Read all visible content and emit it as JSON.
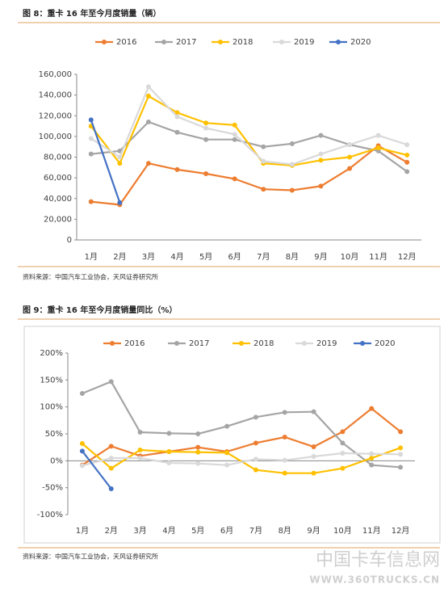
{
  "chart_data": [
    {
      "type": "line",
      "title": "图 8：重卡 16 年至今月度销量（辆）",
      "source": "资料来源：中国汽车工业协会，天风证券研究所",
      "categories": [
        "1月",
        "2月",
        "3月",
        "4月",
        "5月",
        "6月",
        "7月",
        "8月",
        "9月",
        "10月",
        "11月",
        "12月"
      ],
      "ylim": [
        0,
        160000
      ],
      "yticks": [
        0,
        {
          "value": 20000,
          "label": "20,000"
        },
        {
          "value": 40000,
          "label": "40,000"
        },
        {
          "value": 60000,
          "label": "60,000"
        },
        {
          "value": 80000,
          "label": "80,000"
        },
        {
          "value": 100000,
          "label": "100,000"
        },
        {
          "value": 120000,
          "label": "120,000"
        },
        {
          "value": 140000,
          "label": "140,000"
        },
        {
          "value": 160000,
          "label": "160,000"
        }
      ],
      "grid": false,
      "series": [
        {
          "name": "2016",
          "color": "#ed7d31",
          "values": [
            37000,
            34000,
            74000,
            68000,
            64000,
            59000,
            49000,
            48000,
            52000,
            69000,
            91000,
            75000
          ]
        },
        {
          "name": "2017",
          "color": "#a5a5a5",
          "values": [
            83000,
            86000,
            114000,
            104000,
            97000,
            97000,
            90000,
            93000,
            101000,
            92000,
            86000,
            66000
          ]
        },
        {
          "name": "2018",
          "color": "#ffc000",
          "values": [
            110000,
            74000,
            139000,
            123000,
            113000,
            111000,
            74000,
            72000,
            77000,
            80000,
            89000,
            82000
          ]
        },
        {
          "name": "2019",
          "color": "#d9d9d9",
          "values": [
            98000,
            80000,
            148000,
            119000,
            108000,
            102000,
            76000,
            73000,
            83000,
            92000,
            101000,
            92000
          ]
        },
        {
          "name": "2020",
          "color": "#4472c4",
          "values": [
            116000,
            36000,
            null,
            null,
            null,
            null,
            null,
            null,
            null,
            null,
            null,
            null
          ]
        }
      ]
    },
    {
      "type": "line",
      "title": "图 9：重卡 16 年至今月度销量同比（%）",
      "source": "资料来源：中国汽车工业协会，天风证券研究所",
      "categories": [
        "1月",
        "2月",
        "3月",
        "4月",
        "5月",
        "6月",
        "7月",
        "8月",
        "9月",
        "10月",
        "11月",
        "12月"
      ],
      "ylim": [
        -100,
        200
      ],
      "yticks": [
        {
          "value": -100,
          "label": "-100%"
        },
        {
          "value": -50,
          "label": "-50%"
        },
        {
          "value": 0,
          "label": "0%"
        },
        {
          "value": 50,
          "label": "50%"
        },
        {
          "value": 100,
          "label": "100%"
        },
        {
          "value": 150,
          "label": "150%"
        },
        {
          "value": 200,
          "label": "200%"
        }
      ],
      "grid": false,
      "series": [
        {
          "name": "2016",
          "color": "#ed7d31",
          "values": [
            -8,
            27,
            9,
            17,
            25,
            17,
            33,
            44,
            26,
            54,
            97,
            54
          ]
        },
        {
          "name": "2017",
          "color": "#a5a5a5",
          "values": [
            125,
            147,
            53,
            51,
            50,
            64,
            81,
            90,
            91,
            33,
            -8,
            -12
          ]
        },
        {
          "name": "2018",
          "color": "#ffc000",
          "values": [
            32,
            -14,
            20,
            17,
            16,
            15,
            -17,
            -23,
            -23,
            -14,
            5,
            24
          ]
        },
        {
          "name": "2019",
          "color": "#d9d9d9",
          "values": [
            -9,
            5,
            5,
            -4,
            -5,
            -8,
            3,
            1,
            8,
            14,
            13,
            12
          ]
        },
        {
          "name": "2020",
          "color": "#4472c4",
          "values": [
            18,
            -52,
            null,
            null,
            null,
            null,
            null,
            null,
            null,
            null,
            null,
            null
          ]
        }
      ]
    }
  ],
  "watermark": {
    "name": "中国卡车信息网",
    "url": "WWW.360TRUCKS.CN"
  }
}
